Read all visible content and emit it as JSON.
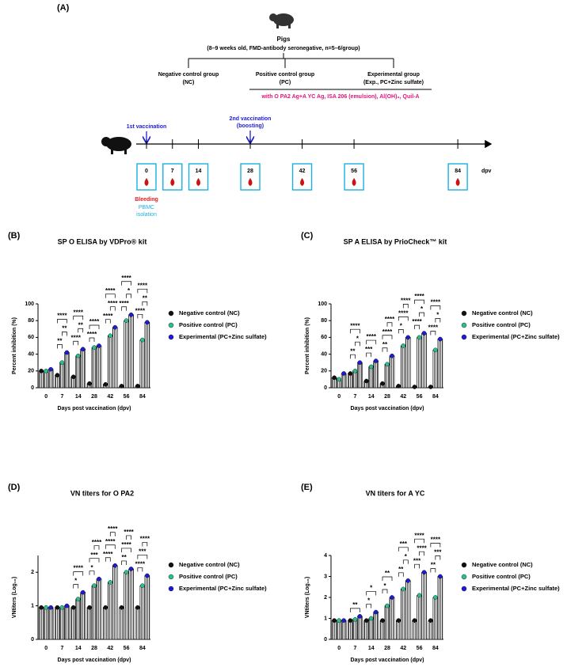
{
  "schematic": {
    "panel": "(A)",
    "animals": "Pigs",
    "animals_note": "(8–9 weeks old, FMD-antibody seronegative, n=5–6/group)",
    "groups": [
      [
        "Negative control group",
        "(NC)"
      ],
      [
        "Positive control group",
        "(PC)"
      ],
      [
        "Experimental group",
        "(Exp., PC+Zinc sulfate)"
      ]
    ],
    "vaccine": "with O PA2 Ag+A YC Ag, ISA 206 (emulsion), Al(OH)₃, Quil-A",
    "first_vaccination": "1st vaccination",
    "second_vaccination": [
      "2nd vaccination",
      "(boosting)"
    ],
    "days": [
      "0",
      "7",
      "14",
      "28",
      "42",
      "56",
      "84"
    ],
    "day_unit": "dpv",
    "sampling": [
      "Bleeding",
      "PBMC",
      "isolation"
    ]
  },
  "chart_data": [
    {
      "type": "bar",
      "panel": "(B)",
      "title": "SP O ELISA by VDPro® kit",
      "y_label": "Percent inhibition (%)",
      "x_label": "Days post vaccination (dpv)",
      "categories": [
        "0",
        "7",
        "14",
        "28",
        "42",
        "56",
        "84"
      ],
      "ylim": [
        0,
        100
      ],
      "yticks": [
        0,
        20,
        40,
        60,
        80,
        100
      ],
      "series": [
        {
          "name": "Negative control (NC)",
          "color": "#111111",
          "values": [
            20,
            15,
            13,
            5,
            4,
            2,
            2
          ]
        },
        {
          "name": "Positive control (PC)",
          "color": "#2bbf8f",
          "values": [
            20,
            30,
            38,
            48,
            62,
            80,
            57
          ]
        },
        {
          "name": "Experimental (PC+Zinc sulfate)",
          "color": "#1c1cd6",
          "values": [
            22,
            42,
            46,
            50,
            72,
            87,
            78
          ]
        }
      ],
      "significance": [
        [],
        [
          {
            "between": [
              "Negative control (NC)",
              "Positive control (PC)"
            ],
            "label": "**"
          },
          {
            "between": [
              "Positive control (PC)",
              "Experimental (PC+Zinc sulfate)"
            ],
            "label": "**"
          },
          {
            "between": [
              "Negative control (NC)",
              "Experimental (PC+Zinc sulfate)"
            ],
            "label": "****"
          }
        ],
        [
          {
            "between": [
              "Negative control (NC)",
              "Positive control (PC)"
            ],
            "label": "****"
          },
          {
            "between": [
              "Positive control (PC)",
              "Experimental (PC+Zinc sulfate)"
            ],
            "label": "**"
          },
          {
            "between": [
              "Negative control (NC)",
              "Experimental (PC+Zinc sulfate)"
            ],
            "label": "****"
          }
        ],
        [
          {
            "between": [
              "Negative control (NC)",
              "Positive control (PC)"
            ],
            "label": "****"
          },
          {
            "between": [
              "Negative control (NC)",
              "Experimental (PC+Zinc sulfate)"
            ],
            "label": "****"
          }
        ],
        [
          {
            "between": [
              "Negative control (NC)",
              "Positive control (PC)"
            ],
            "label": "****"
          },
          {
            "between": [
              "Positive control (PC)",
              "Experimental (PC+Zinc sulfate)"
            ],
            "label": "****"
          },
          {
            "between": [
              "Negative control (NC)",
              "Experimental (PC+Zinc sulfate)"
            ],
            "label": "****"
          }
        ],
        [
          {
            "between": [
              "Negative control (NC)",
              "Positive control (PC)"
            ],
            "label": "****"
          },
          {
            "between": [
              "Positive control (PC)",
              "Experimental (PC+Zinc sulfate)"
            ],
            "label": "*"
          },
          {
            "between": [
              "Negative control (NC)",
              "Experimental (PC+Zinc sulfate)"
            ],
            "label": "****"
          }
        ],
        [
          {
            "between": [
              "Negative control (NC)",
              "Positive control (PC)"
            ],
            "label": "****"
          },
          {
            "between": [
              "Positive control (PC)",
              "Experimental (PC+Zinc sulfate)"
            ],
            "label": "**"
          },
          {
            "between": [
              "Negative control (NC)",
              "Experimental (PC+Zinc sulfate)"
            ],
            "label": "****"
          }
        ]
      ]
    },
    {
      "type": "bar",
      "panel": "(C)",
      "title": "SP A ELISA by PrioCheck™ kit",
      "y_label": "Percent inhibition (%)",
      "x_label": "Days post vaccination (dpv)",
      "categories": [
        "0",
        "7",
        "14",
        "28",
        "42",
        "56",
        "84"
      ],
      "ylim": [
        0,
        100
      ],
      "yticks": [
        0,
        20,
        40,
        60,
        80,
        100
      ],
      "series": [
        {
          "name": "Negative control (NC)",
          "color": "#111111",
          "values": [
            12,
            17,
            8,
            5,
            2,
            1,
            1
          ]
        },
        {
          "name": "Positive control (PC)",
          "color": "#2bbf8f",
          "values": [
            10,
            20,
            25,
            28,
            50,
            60,
            45
          ]
        },
        {
          "name": "Experimental (PC+Zinc sulfate)",
          "color": "#1c1cd6",
          "values": [
            17,
            30,
            32,
            38,
            60,
            65,
            58
          ]
        }
      ],
      "significance": [
        [],
        [
          {
            "between": [
              "Negative control (NC)",
              "Positive control (PC)"
            ],
            "label": "**"
          },
          {
            "between": [
              "Positive control (PC)",
              "Experimental (PC+Zinc sulfate)"
            ],
            "label": "*"
          },
          {
            "between": [
              "Negative control (NC)",
              "Experimental (PC+Zinc sulfate)"
            ],
            "label": "****"
          }
        ],
        [
          {
            "between": [
              "Negative control (NC)",
              "Positive control (PC)"
            ],
            "label": "***"
          },
          {
            "between": [
              "Negative control (NC)",
              "Experimental (PC+Zinc sulfate)"
            ],
            "label": "****"
          }
        ],
        [
          {
            "between": [
              "Negative control (NC)",
              "Positive control (PC)"
            ],
            "label": "**"
          },
          {
            "between": [
              "Negative control (NC)",
              "Experimental (PC+Zinc sulfate)"
            ],
            "label": "****"
          },
          {
            "between": [
              "Positive control (PC)",
              "Experimental (PC+Zinc sulfate)"
            ],
            "label": "****"
          }
        ],
        [
          {
            "between": [
              "Negative control (NC)",
              "Positive control (PC)"
            ],
            "label": "*"
          },
          {
            "between": [
              "Negative control (NC)",
              "Experimental (PC+Zinc sulfate)"
            ],
            "label": "****"
          },
          {
            "between": [
              "Positive control (PC)",
              "Experimental (PC+Zinc sulfate)"
            ],
            "label": "****"
          }
        ],
        [
          {
            "between": [
              "Negative control (NC)",
              "Positive control (PC)"
            ],
            "label": "****"
          },
          {
            "between": [
              "Positive control (PC)",
              "Experimental (PC+Zinc sulfate)"
            ],
            "label": "*"
          },
          {
            "between": [
              "Negative control (NC)",
              "Experimental (PC+Zinc sulfate)"
            ],
            "label": "****"
          }
        ],
        [
          {
            "between": [
              "Negative control (NC)",
              "Positive control (PC)"
            ],
            "label": "****"
          },
          {
            "between": [
              "Positive control (PC)",
              "Experimental (PC+Zinc sulfate)"
            ],
            "label": "*"
          },
          {
            "between": [
              "Negative control (NC)",
              "Experimental (PC+Zinc sulfate)"
            ],
            "label": "****"
          }
        ]
      ]
    },
    {
      "type": "bar",
      "panel": "(D)",
      "title": "VN titers for O PA2",
      "y_label": "VNtiters (Log₁₀)",
      "x_label": "Days post vaccination (dpv)",
      "categories": [
        "0",
        "7",
        "14",
        "28",
        "42",
        "56",
        "84"
      ],
      "ylim": [
        0,
        2.5
      ],
      "yticks": [
        0,
        1,
        2
      ],
      "series": [
        {
          "name": "Negative control (NC)",
          "color": "#111111",
          "values": [
            0.95,
            0.95,
            0.95,
            0.95,
            0.95,
            0.95,
            0.95
          ]
        },
        {
          "name": "Positive control (PC)",
          "color": "#2bbf8f",
          "values": [
            0.95,
            0.95,
            1.2,
            1.6,
            1.7,
            2.0,
            1.6
          ]
        },
        {
          "name": "Experimental (PC+Zinc sulfate)",
          "color": "#1c1cd6",
          "values": [
            0.95,
            1.0,
            1.4,
            1.8,
            2.2,
            2.1,
            1.9
          ]
        }
      ],
      "significance": [
        [],
        [],
        [
          {
            "between": [
              "Negative control (NC)",
              "Positive control (PC)"
            ],
            "label": "*"
          },
          {
            "between": [
              "Negative control (NC)",
              "Experimental (PC+Zinc sulfate)"
            ],
            "label": "****"
          }
        ],
        [
          {
            "between": [
              "Negative control (NC)",
              "Positive control (PC)"
            ],
            "label": "*"
          },
          {
            "between": [
              "Negative control (NC)",
              "Experimental (PC+Zinc sulfate)"
            ],
            "label": "***"
          },
          {
            "between": [
              "Positive control (PC)",
              "Experimental (PC+Zinc sulfate)"
            ],
            "label": "****"
          }
        ],
        [
          {
            "between": [
              "Negative control (NC)",
              "Positive control (PC)"
            ],
            "label": "****"
          },
          {
            "between": [
              "Negative control (NC)",
              "Experimental (PC+Zinc sulfate)"
            ],
            "label": "****"
          },
          {
            "between": [
              "Positive control (PC)",
              "Experimental (PC+Zinc sulfate)"
            ],
            "label": "****"
          }
        ],
        [
          {
            "between": [
              "Negative control (NC)",
              "Positive control (PC)"
            ],
            "label": "**"
          },
          {
            "between": [
              "Negative control (NC)",
              "Experimental (PC+Zinc sulfate)"
            ],
            "label": "****"
          },
          {
            "between": [
              "Positive control (PC)",
              "Experimental (PC+Zinc sulfate)"
            ],
            "label": "****"
          }
        ],
        [
          {
            "between": [
              "Negative control (NC)",
              "Positive control (PC)"
            ],
            "label": "****"
          },
          {
            "between": [
              "Negative control (NC)",
              "Experimental (PC+Zinc sulfate)"
            ],
            "label": "***"
          },
          {
            "between": [
              "Positive control (PC)",
              "Experimental (PC+Zinc sulfate)"
            ],
            "label": "****"
          }
        ]
      ]
    },
    {
      "type": "bar",
      "panel": "(E)",
      "title": "VN titers for A YC",
      "y_label": "VNtiters (Log₁₀)",
      "x_label": "Days post vaccination (dpv)",
      "categories": [
        "0",
        "7",
        "14",
        "28",
        "42",
        "56",
        "84"
      ],
      "ylim": [
        0,
        4
      ],
      "yticks": [
        0,
        1,
        2,
        3,
        4
      ],
      "series": [
        {
          "name": "Negative control (NC)",
          "color": "#111111",
          "values": [
            0.9,
            0.9,
            0.9,
            0.9,
            0.9,
            0.9,
            0.9
          ]
        },
        {
          "name": "Positive control (PC)",
          "color": "#2bbf8f",
          "values": [
            0.9,
            0.95,
            1.0,
            1.6,
            2.4,
            2.1,
            2.0
          ]
        },
        {
          "name": "Experimental (PC+Zinc sulfate)",
          "color": "#1c1cd6",
          "values": [
            0.9,
            1.1,
            1.3,
            2.0,
            2.8,
            3.2,
            3.0
          ]
        }
      ],
      "significance": [
        [],
        [
          {
            "between": [
              "Negative control (NC)",
              "Experimental (PC+Zinc sulfate)"
            ],
            "label": "**"
          }
        ],
        [
          {
            "between": [
              "Negative control (NC)",
              "Positive control (PC)"
            ],
            "label": "*"
          },
          {
            "between": [
              "Negative control (NC)",
              "Experimental (PC+Zinc sulfate)"
            ],
            "label": "*"
          }
        ],
        [
          {
            "between": [
              "Negative control (NC)",
              "Positive control (PC)"
            ],
            "label": "*"
          },
          {
            "between": [
              "Negative control (NC)",
              "Experimental (PC+Zinc sulfate)"
            ],
            "label": "**"
          }
        ],
        [
          {
            "between": [
              "Negative control (NC)",
              "Positive control (PC)"
            ],
            "label": "**"
          },
          {
            "between": [
              "Positive control (PC)",
              "Experimental (PC+Zinc sulfate)"
            ],
            "label": "*"
          },
          {
            "between": [
              "Negative control (NC)",
              "Experimental (PC+Zinc sulfate)"
            ],
            "label": "***"
          }
        ],
        [
          {
            "between": [
              "Negative control (NC)",
              "Positive control (PC)"
            ],
            "label": "***"
          },
          {
            "between": [
              "Positive control (PC)",
              "Experimental (PC+Zinc sulfate)"
            ],
            "label": "****"
          },
          {
            "between": [
              "Negative control (NC)",
              "Experimental (PC+Zinc sulfate)"
            ],
            "label": "****"
          }
        ],
        [
          {
            "between": [
              "Negative control (NC)",
              "Positive control (PC)"
            ],
            "label": "**"
          },
          {
            "between": [
              "Positive control (PC)",
              "Experimental (PC+Zinc sulfate)"
            ],
            "label": "***"
          },
          {
            "between": [
              "Negative control (NC)",
              "Experimental (PC+Zinc sulfate)"
            ],
            "label": "****"
          }
        ]
      ]
    }
  ]
}
